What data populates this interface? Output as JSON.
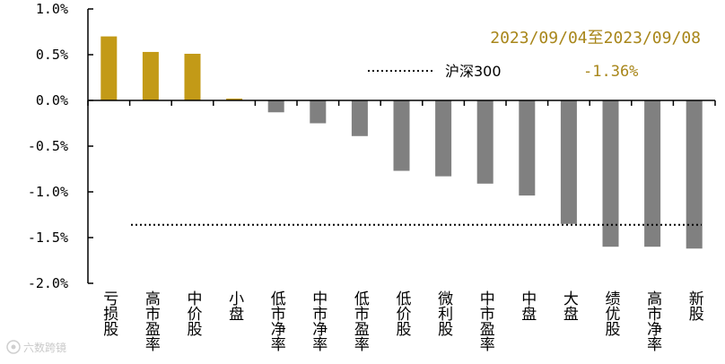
{
  "chart_data": {
    "type": "bar",
    "categories": [
      "亏损股",
      "高市盈率",
      "中价股",
      "小盘",
      "低市净率",
      "中市净率",
      "低市盈率",
      "低价股",
      "微利股",
      "中市盈率",
      "中盘",
      "大盘",
      "绩优股",
      "高市净率",
      "新股"
    ],
    "values": [
      0.7,
      0.53,
      0.51,
      0.02,
      -0.13,
      -0.25,
      -0.39,
      -0.77,
      -0.83,
      -0.91,
      -1.04,
      -1.35,
      -1.6,
      -1.6,
      -1.62
    ],
    "highlight_count": 4,
    "colors": {
      "positive_bar": "#c39a17",
      "negative_bar": "#808080",
      "text_accent": "#a8861a"
    },
    "yticks": [
      1.0,
      0.5,
      0.0,
      -0.5,
      -1.0,
      -1.5,
      -2.0
    ],
    "ytick_labels": [
      "1.0%",
      "0.5%",
      "0.0%",
      "-0.5%",
      "-1.0%",
      "-1.5%",
      "-2.0%"
    ],
    "ylim": [
      -2.0,
      1.0
    ],
    "date_range": "2023/09/04至2023/09/08",
    "reference_line": {
      "name": "沪深300",
      "value": -1.36,
      "value_label": "-1.36%",
      "style": "dotted"
    },
    "grid": false,
    "title": "",
    "xlabel": "",
    "ylabel": ""
  },
  "watermark": {
    "icon": "camera-logo-icon",
    "text": "六数跨镜"
  }
}
